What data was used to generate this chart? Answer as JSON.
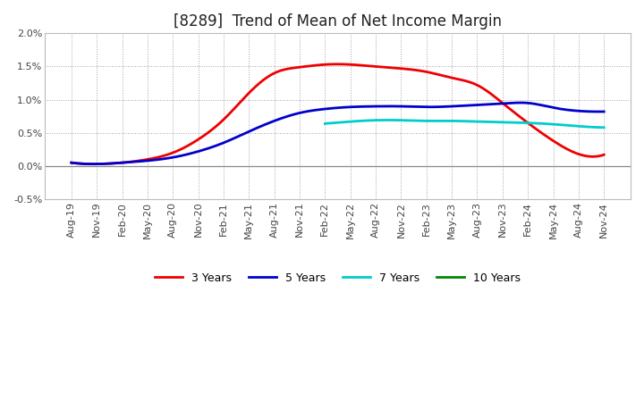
{
  "title": "[8289]  Trend of Mean of Net Income Margin",
  "xlabels": [
    "Aug-19",
    "Nov-19",
    "Feb-20",
    "May-20",
    "Aug-20",
    "Nov-20",
    "Feb-21",
    "May-21",
    "Aug-21",
    "Nov-21",
    "Feb-22",
    "May-22",
    "Aug-22",
    "Nov-22",
    "Feb-23",
    "May-23",
    "Aug-23",
    "Nov-23",
    "Feb-24",
    "May-24",
    "Aug-24",
    "Nov-24"
  ],
  "ylim": [
    -0.005,
    0.02
  ],
  "yticks": [
    -0.005,
    0.0,
    0.005,
    0.01,
    0.015,
    0.02
  ],
  "ytick_labels": [
    "-0.5%",
    "0.0%",
    "0.5%",
    "1.0%",
    "1.5%",
    "2.0%"
  ],
  "series": {
    "3 Years": {
      "color": "#ee0000",
      "values": [
        0.0005,
        0.0003,
        0.0005,
        0.001,
        0.002,
        0.004,
        0.007,
        0.011,
        0.014,
        0.0149,
        0.0153,
        0.0153,
        0.015,
        0.0147,
        0.0142,
        0.0133,
        0.0122,
        0.0095,
        0.0065,
        0.0038,
        0.0018,
        0.0017
      ]
    },
    "5 Years": {
      "color": "#0000cc",
      "values": [
        0.0005,
        0.0003,
        0.0005,
        0.0008,
        0.0013,
        0.0022,
        0.0035,
        0.0052,
        0.0068,
        0.008,
        0.0086,
        0.0089,
        0.009,
        0.009,
        0.0089,
        0.009,
        0.0092,
        0.0094,
        0.0095,
        0.0088,
        0.0083,
        0.0082
      ]
    },
    "7 Years": {
      "color": "#00cccc",
      "values": [
        null,
        null,
        null,
        null,
        null,
        null,
        null,
        null,
        null,
        null,
        0.0064,
        0.0067,
        0.0069,
        0.0069,
        0.0068,
        0.0068,
        0.0067,
        0.0066,
        0.0065,
        0.0063,
        0.006,
        0.0058
      ]
    },
    "10 Years": {
      "color": "#008800",
      "values": [
        null,
        null,
        null,
        null,
        null,
        null,
        null,
        null,
        null,
        null,
        null,
        null,
        null,
        null,
        null,
        null,
        null,
        null,
        null,
        null,
        null,
        null
      ]
    }
  },
  "background_color": "#ffffff",
  "grid_color": "#999999",
  "title_fontsize": 12,
  "tick_fontsize": 8,
  "legend_fontsize": 9,
  "line_width": 2.0
}
